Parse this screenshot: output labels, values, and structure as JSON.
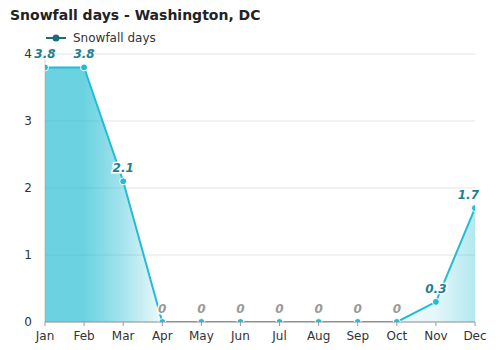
{
  "chart_data": {
    "type": "area",
    "title": "Snowfall days - Washington, DC",
    "categories": [
      "Jan",
      "Feb",
      "Mar",
      "Apr",
      "May",
      "Jun",
      "Jul",
      "Aug",
      "Sep",
      "Oct",
      "Nov",
      "Dec"
    ],
    "series": [
      {
        "name": "Snowfall days",
        "color": "#22bcd4",
        "values": [
          3.8,
          3.8,
          2.1,
          0,
          0,
          0,
          0,
          0,
          0,
          0,
          0.3,
          1.7
        ]
      }
    ],
    "ylim": [
      0,
      4
    ],
    "yticks": [
      0,
      1,
      2,
      3,
      4
    ],
    "grid": true,
    "legend": "upper left",
    "data_labels": true,
    "marker": "circle"
  }
}
